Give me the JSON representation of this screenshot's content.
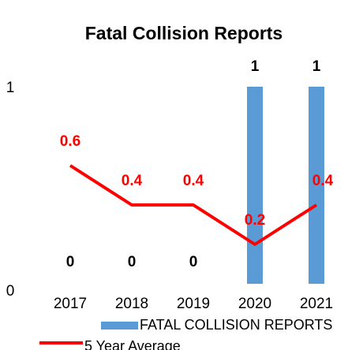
{
  "chart_data": {
    "type": "bar_line",
    "title": "Fatal Collision Reports",
    "categories": [
      "2017",
      "2018",
      "2019",
      "2020",
      "2021"
    ],
    "series": [
      {
        "name": "FATAL COLLISION REPORTS",
        "type": "bar",
        "color": "#5b9bd5",
        "values": [
          0,
          0,
          0,
          1,
          1
        ]
      },
      {
        "name": "5 Year Average",
        "type": "line",
        "color": "#ff0000",
        "values": [
          0.6,
          0.4,
          0.4,
          0.2,
          0.4
        ]
      }
    ],
    "ylim": [
      0,
      1
    ],
    "yticks": [
      0,
      1
    ],
    "grid": false,
    "legend": "bottom"
  }
}
